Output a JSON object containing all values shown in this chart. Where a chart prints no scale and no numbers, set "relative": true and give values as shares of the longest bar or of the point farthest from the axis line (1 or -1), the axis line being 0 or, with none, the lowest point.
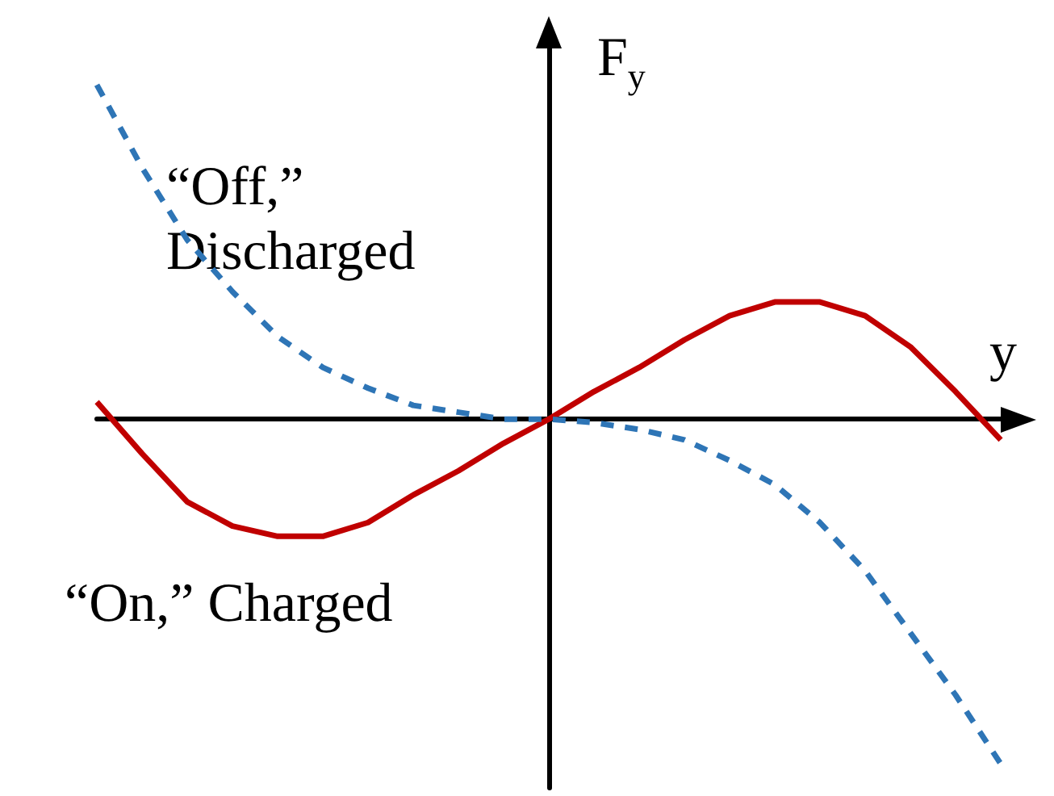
{
  "chart_data": {
    "type": "line",
    "relative": true,
    "xlabel": "y",
    "ylabel": "F$_{y}$",
    "legend": false,
    "grid": false,
    "marker": "none",
    "tick_labels": false,
    "categories": [
      null,
      null,
      null,
      null,
      null,
      null,
      null,
      null,
      null,
      null,
      null,
      null,
      null,
      null,
      null,
      null,
      null,
      null,
      null,
      null,
      null
    ],
    "series": [
      {
        "name": "“On,” Charged",
        "color": "#c00000",
        "line_style": "solid",
        "values": [
          0.05,
          -0.1,
          -0.24,
          -0.31,
          -0.34,
          -0.34,
          -0.3,
          -0.22,
          -0.15,
          -0.07,
          0,
          0.08,
          0.15,
          0.23,
          0.3,
          0.34,
          0.34,
          0.3,
          0.21,
          0.08,
          -0.06
        ]
      },
      {
        "name": "“Off,” Discharged",
        "color": "#2e75b6",
        "line_style": "dashed",
        "values": [
          0.97,
          0.73,
          0.52,
          0.37,
          0.24,
          0.15,
          0.09,
          0.04,
          0.02,
          0.0,
          0,
          -0.01,
          -0.03,
          -0.06,
          -0.12,
          -0.19,
          -0.3,
          -0.44,
          -0.62,
          -0.8,
          -1
        ]
      }
    ]
  }
}
